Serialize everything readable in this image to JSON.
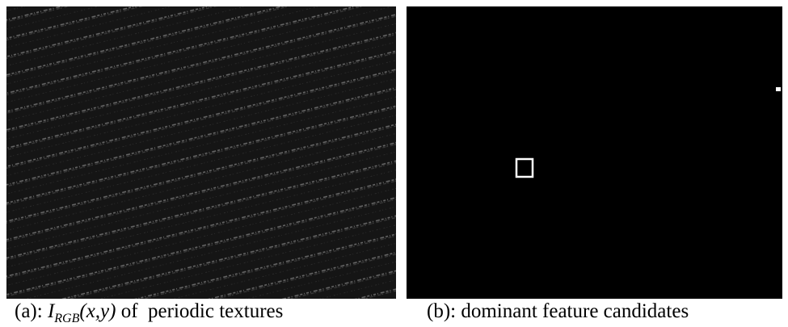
{
  "figure": {
    "panel_a": {
      "caption": {
        "prefix": "(a): ",
        "symbol": "I",
        "subscript": "RGB",
        "args": "(x,y)",
        "suffix": " of  periodic textures"
      }
    },
    "panel_b": {
      "caption": "(b): dominant feature candidates"
    }
  }
}
